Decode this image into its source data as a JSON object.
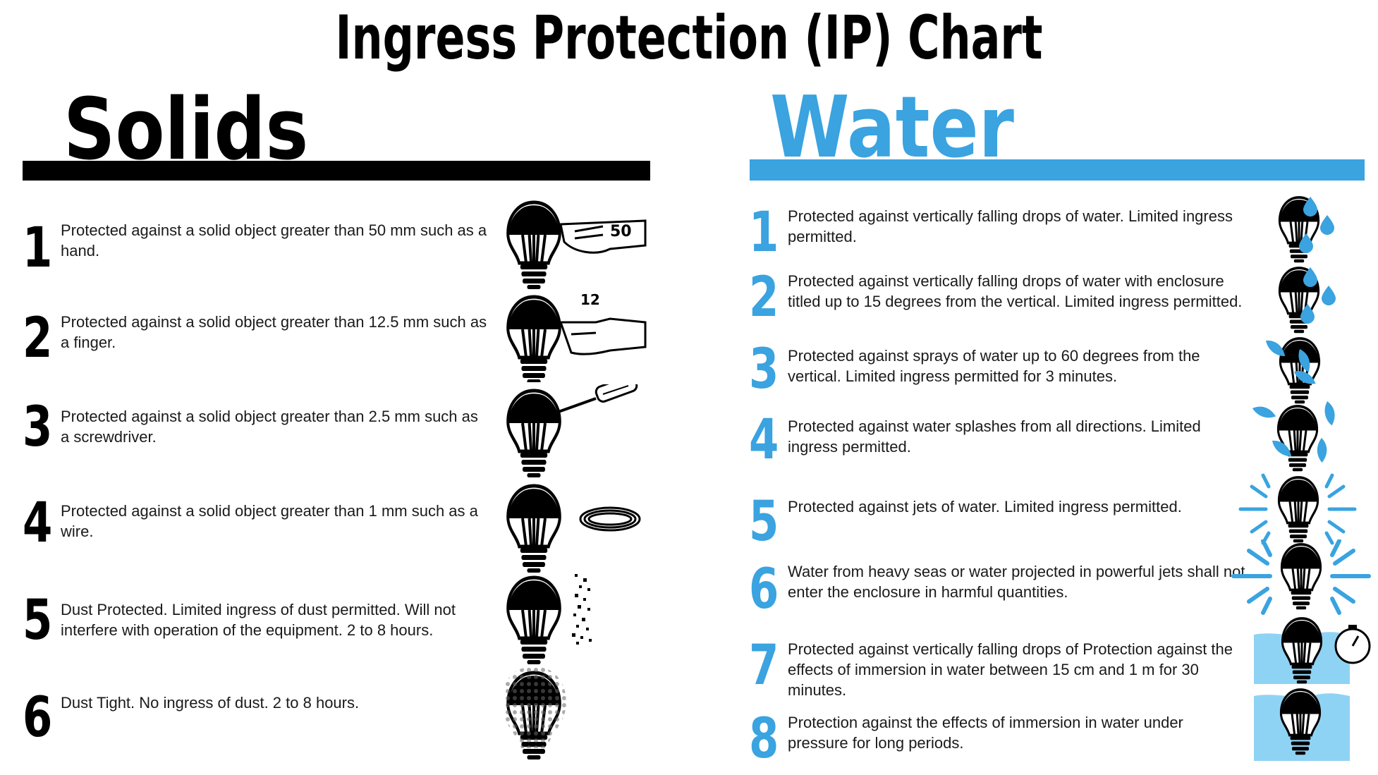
{
  "title": "Ingress Protection (IP) Chart",
  "solids": {
    "heading": "Solids",
    "items": [
      {
        "level": "1",
        "text": "Protected against a solid object greater than 50 mm such as a hand.",
        "icon": "hand-icon",
        "mark": "50"
      },
      {
        "level": "2",
        "text": "Protected against a solid object greater than 12.5 mm such as a finger.",
        "icon": "finger-icon",
        "mark": "12"
      },
      {
        "level": "3",
        "text": "Protected against a solid object greater than 2.5 mm such as a screwdriver.",
        "icon": "screwdriver-icon"
      },
      {
        "level": "4",
        "text": "Protected against a solid object greater than 1 mm such as a wire.",
        "icon": "wire-icon"
      },
      {
        "level": "5",
        "text": "Dust Protected. Limited ingress of dust permitted. Will not interfere with operation of the equipment. 2 to 8 hours.",
        "icon": "dust-icon"
      },
      {
        "level": "6",
        "text": "Dust Tight. No ingress of dust. 2 to 8 hours.",
        "icon": "dust-tight-icon"
      }
    ]
  },
  "water": {
    "heading": "Water",
    "items": [
      {
        "level": "1",
        "text": "Protected against vertically falling drops of water. Limited ingress permitted.",
        "icon": "vertical-drops-icon"
      },
      {
        "level": "2",
        "text": "Protected against vertically falling drops of water with enclosure titled up to 15 degrees from the vertical. Limited ingress permitted.",
        "icon": "tilted-drops-icon"
      },
      {
        "level": "3",
        "text": "Protected against sprays of water up to 60 degrees from the vertical. Limited ingress permitted for 3 minutes.",
        "icon": "spray-icon"
      },
      {
        "level": "4",
        "text": "Protected against water splashes from all directions. Limited ingress permitted.",
        "icon": "splash-icon"
      },
      {
        "level": "5",
        "text": "Protected against jets of water. Limited ingress permitted.",
        "icon": "water-jet-icon"
      },
      {
        "level": "6",
        "text": "Water from heavy seas or water projected in powerful jets shall not enter the enclosure in harmful quantities.",
        "icon": "powerful-jet-icon"
      },
      {
        "level": "7",
        "text": "Protected against vertically falling drops of Protection against the effects of immersion in water between 15 cm and 1 m for 30 minutes.",
        "icon": "immersion-timer-icon"
      },
      {
        "level": "8",
        "text": "Protection against the effects of immersion in water under pressure for long periods.",
        "icon": "submersion-icon"
      }
    ]
  },
  "colors": {
    "accent": "#3aa3e0",
    "dark": "#000000",
    "light_water": "#8fd3f4"
  }
}
